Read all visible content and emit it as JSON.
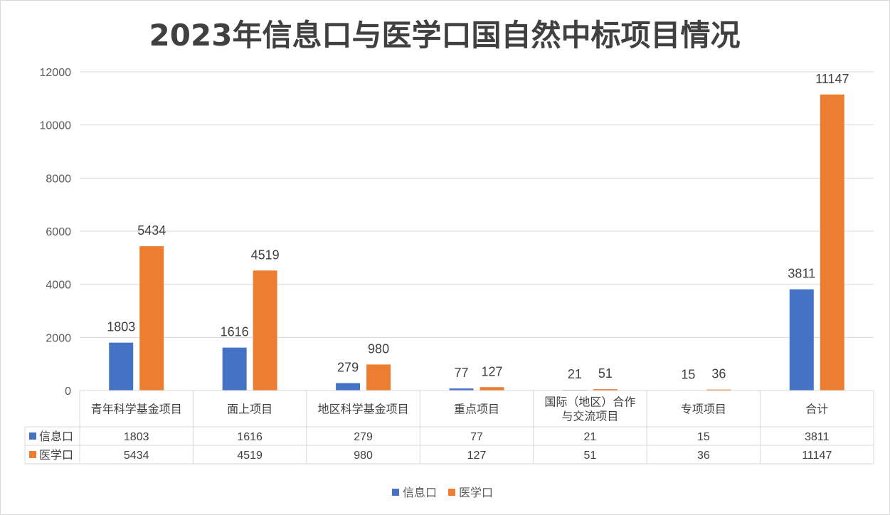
{
  "chart_data": {
    "type": "bar",
    "title": "2023年信息口与医学口国自然中标项目情况",
    "categories": [
      [
        "青年科学基金项目"
      ],
      [
        "面上项目"
      ],
      [
        "地区科学基金项目"
      ],
      [
        "重点项目"
      ],
      [
        "国际（地区）合作",
        "与交流项目"
      ],
      [
        "专项项目"
      ],
      [
        "合计"
      ]
    ],
    "series": [
      {
        "name": "信息口",
        "color": "#4472c4",
        "values": [
          1803,
          1616,
          279,
          77,
          21,
          15,
          3811
        ]
      },
      {
        "name": "医学口",
        "color": "#ed7d31",
        "values": [
          5434,
          4519,
          980,
          127,
          51,
          36,
          11147
        ]
      }
    ],
    "ylim": [
      0,
      12000
    ],
    "yticks": [
      0,
      2000,
      4000,
      6000,
      8000,
      10000,
      12000
    ],
    "grid": true,
    "data_table": true,
    "legend": "bottom"
  }
}
